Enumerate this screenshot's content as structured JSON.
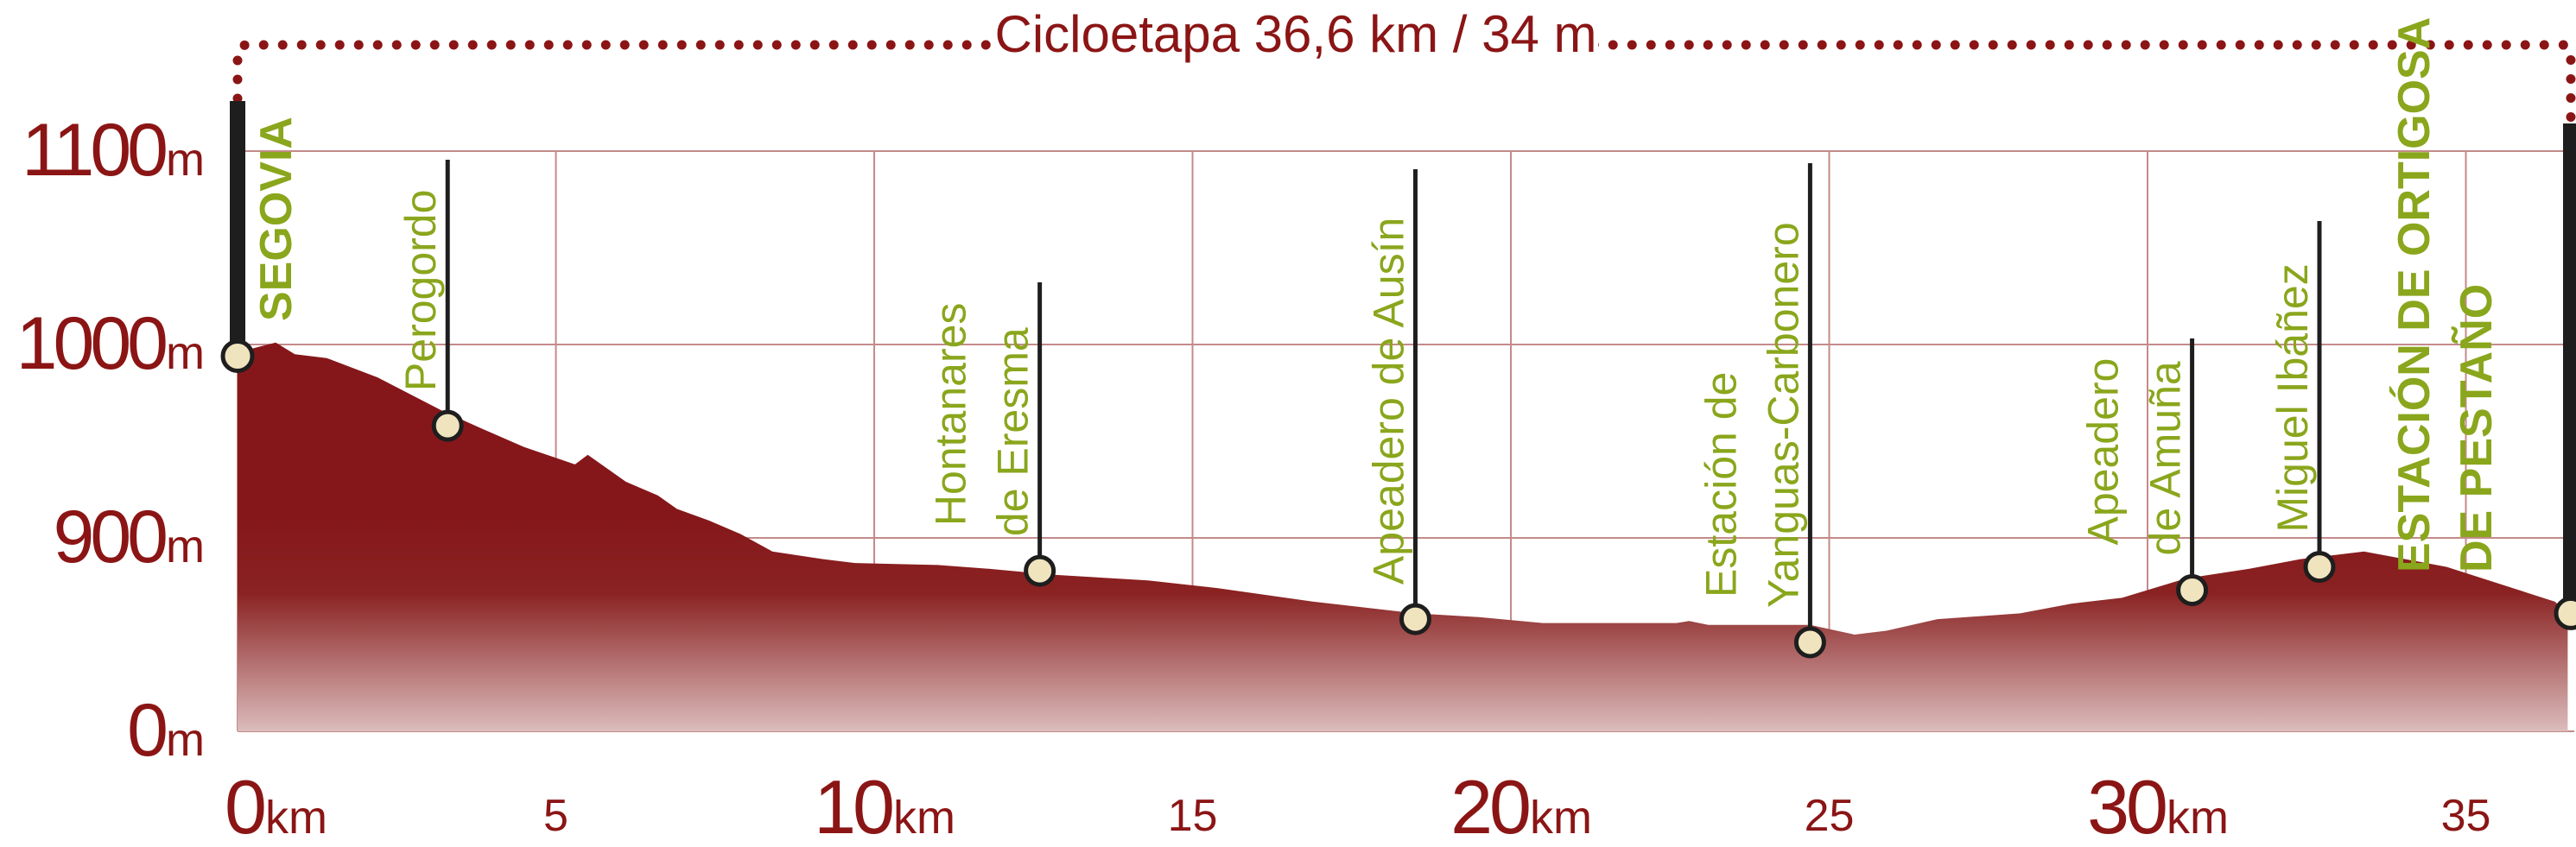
{
  "chart_data": {
    "type": "area",
    "title": "Cicloetapa 36,6 km / 34 m",
    "xlabel": "",
    "ylabel": "",
    "xlim": [
      0,
      36.6
    ],
    "x_unit": "km",
    "y_unit": "m",
    "y_axis_break": true,
    "y_ticks": [
      {
        "value": 0,
        "label": "0"
      },
      {
        "value": 900,
        "label": "900"
      },
      {
        "value": 1000,
        "label": "1000"
      },
      {
        "value": 1100,
        "label": "1100"
      }
    ],
    "x_ticks": [
      {
        "value": 0,
        "label": "0",
        "unit": "km",
        "major": true
      },
      {
        "value": 5,
        "label": "5",
        "major": false
      },
      {
        "value": 10,
        "label": "10",
        "unit": "km",
        "major": true
      },
      {
        "value": 15,
        "label": "15",
        "major": false
      },
      {
        "value": 20,
        "label": "20",
        "unit": "km",
        "major": true
      },
      {
        "value": 25,
        "label": "25",
        "major": false
      },
      {
        "value": 30,
        "label": "30",
        "unit": "km",
        "major": true
      },
      {
        "value": 35,
        "label": "35",
        "major": false
      }
    ],
    "grid": true,
    "colors": {
      "fill_top": "#85171a",
      "fill_bottom": "#dcbcbc",
      "grid": "#c48a8a",
      "text": "#8b1515",
      "waypoint_text": "#8aa61c",
      "marker_fill": "#f0e4bf",
      "stem": "#1e1e1e"
    },
    "profile": {
      "x": [
        0,
        0.6,
        0.9,
        1.4,
        2.2,
        3.2,
        3.8,
        4.5,
        5.3,
        5.5,
        6.1,
        6.6,
        6.9,
        7.4,
        7.9,
        8.4,
        9.2,
        9.7,
        11.0,
        11.8,
        12.8,
        14.3,
        15.4,
        16.9,
        18.5,
        19.5,
        20.5,
        22.6,
        22.8,
        23.1,
        24.7,
        25.4,
        25.9,
        26.7,
        28.0,
        28.8,
        29.6,
        30.6,
        31.6,
        32.4,
        33.4,
        34.7,
        36.4,
        36.6
      ],
      "y": [
        996,
        1001,
        995,
        993,
        983,
        966,
        957,
        947,
        938,
        943,
        929,
        922,
        915,
        909,
        902,
        893,
        889,
        887,
        886,
        884,
        881,
        878,
        874,
        867,
        861,
        859,
        856,
        856,
        857,
        855,
        855,
        850,
        852,
        858,
        861,
        866,
        869,
        879,
        884,
        889,
        893,
        885,
        867,
        861
      ]
    },
    "waypoints": [
      {
        "km": 0,
        "elev": 994,
        "lines": [
          "SEGOVIA"
        ],
        "major": true
      },
      {
        "km": 3.3,
        "elev": 958,
        "lines": [
          "Perogordo"
        ],
        "major": false
      },
      {
        "km": 12.6,
        "elev": 883,
        "lines": [
          "Hontanares",
          "de Eresma"
        ],
        "major": false
      },
      {
        "km": 18.5,
        "elev": 858,
        "lines": [
          "Apeadero de Ausín"
        ],
        "major": false
      },
      {
        "km": 24.7,
        "elev": 846,
        "lines": [
          "Estación de",
          "Yanguas-Carbonero"
        ],
        "major": false
      },
      {
        "km": 30.7,
        "elev": 873,
        "lines": [
          "Apeadero",
          "de Amuña"
        ],
        "major": false
      },
      {
        "km": 32.7,
        "elev": 885,
        "lines": [
          "Miguel Ibáñez"
        ],
        "major": false
      },
      {
        "km": 36.6,
        "elev": 861,
        "lines": [
          "ESTACIÓN DE ORTIGOSA",
          "DE PESTAÑO"
        ],
        "major": true
      }
    ]
  }
}
